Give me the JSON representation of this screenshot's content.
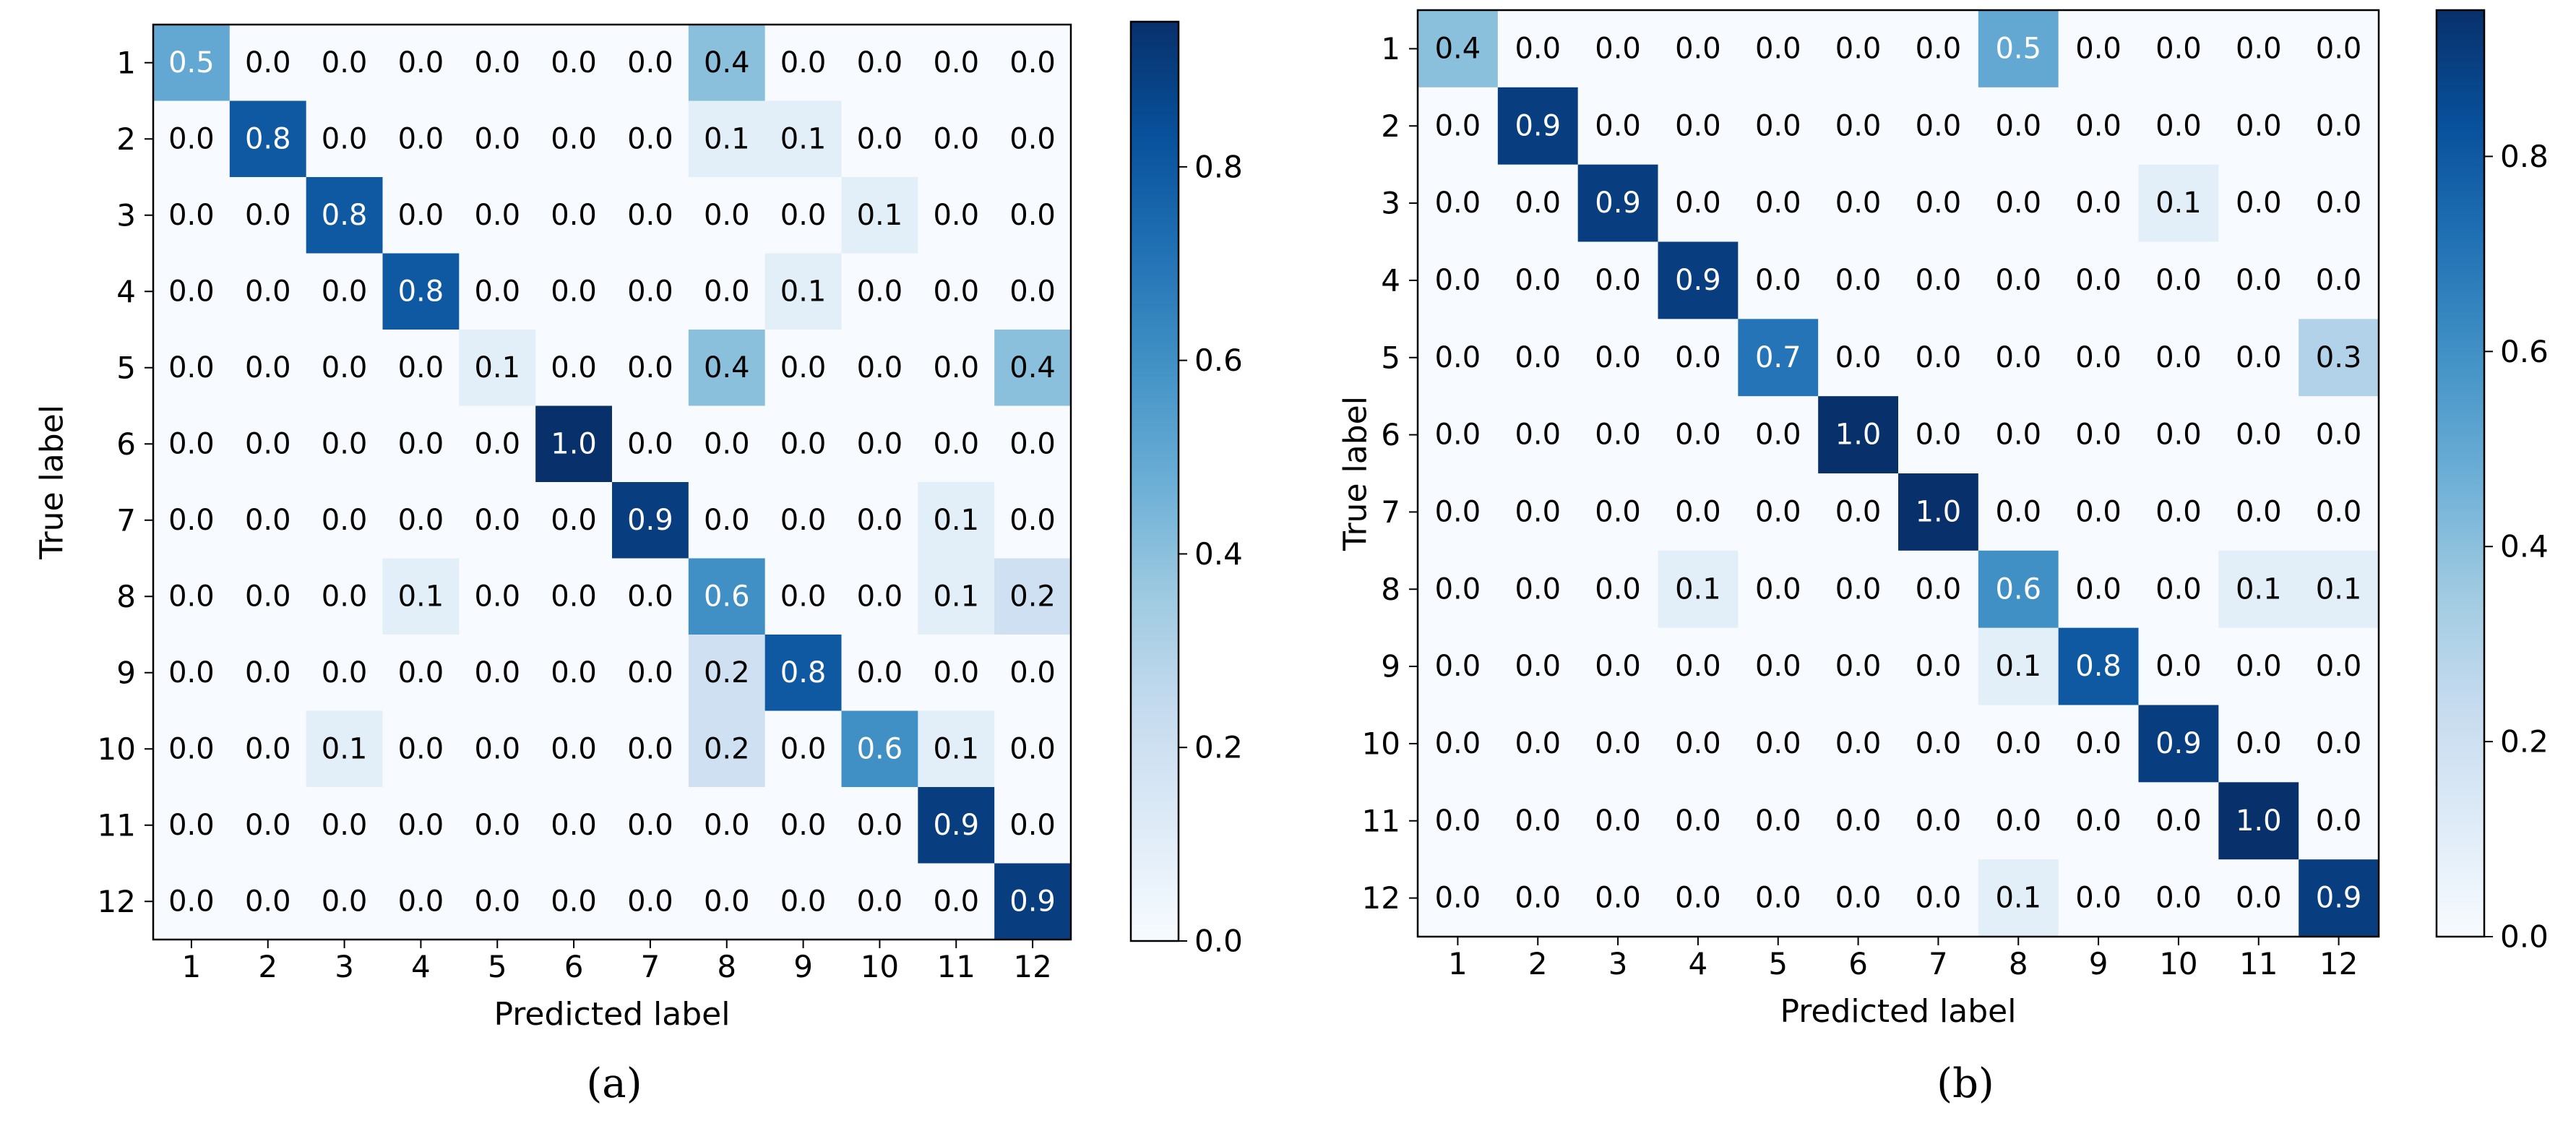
{
  "chart_data": [
    {
      "type": "heatmap",
      "panel_label": "(a)",
      "xlabel": "Predicted label",
      "ylabel": "True label",
      "x_categories": [
        "1",
        "2",
        "3",
        "4",
        "5",
        "6",
        "7",
        "8",
        "9",
        "10",
        "11",
        "12"
      ],
      "y_categories": [
        "1",
        "2",
        "3",
        "4",
        "5",
        "6",
        "7",
        "8",
        "9",
        "10",
        "11",
        "12"
      ],
      "values": [
        [
          0.5,
          0.0,
          0.0,
          0.0,
          0.0,
          0.0,
          0.0,
          0.4,
          0.0,
          0.0,
          0.0,
          0.0
        ],
        [
          0.0,
          0.8,
          0.0,
          0.0,
          0.0,
          0.0,
          0.0,
          0.1,
          0.1,
          0.0,
          0.0,
          0.0
        ],
        [
          0.0,
          0.0,
          0.8,
          0.0,
          0.0,
          0.0,
          0.0,
          0.0,
          0.0,
          0.1,
          0.0,
          0.0
        ],
        [
          0.0,
          0.0,
          0.0,
          0.8,
          0.0,
          0.0,
          0.0,
          0.0,
          0.1,
          0.0,
          0.0,
          0.0
        ],
        [
          0.0,
          0.0,
          0.0,
          0.0,
          0.1,
          0.0,
          0.0,
          0.4,
          0.0,
          0.0,
          0.0,
          0.4
        ],
        [
          0.0,
          0.0,
          0.0,
          0.0,
          0.0,
          1.0,
          0.0,
          0.0,
          0.0,
          0.0,
          0.0,
          0.0
        ],
        [
          0.0,
          0.0,
          0.0,
          0.0,
          0.0,
          0.0,
          0.9,
          0.0,
          0.0,
          0.0,
          0.1,
          0.0
        ],
        [
          0.0,
          0.0,
          0.0,
          0.1,
          0.0,
          0.0,
          0.0,
          0.6,
          0.0,
          0.0,
          0.1,
          0.2
        ],
        [
          0.0,
          0.0,
          0.0,
          0.0,
          0.0,
          0.0,
          0.0,
          0.2,
          0.8,
          0.0,
          0.0,
          0.0
        ],
        [
          0.0,
          0.0,
          0.1,
          0.0,
          0.0,
          0.0,
          0.0,
          0.2,
          0.0,
          0.6,
          0.1,
          0.0
        ],
        [
          0.0,
          0.0,
          0.0,
          0.0,
          0.0,
          0.0,
          0.0,
          0.0,
          0.0,
          0.0,
          0.9,
          0.0
        ],
        [
          0.0,
          0.0,
          0.0,
          0.0,
          0.0,
          0.0,
          0.0,
          0.0,
          0.0,
          0.0,
          0.0,
          0.9
        ]
      ],
      "colorbar": {
        "range": [
          0.0,
          0.95
        ],
        "ticks": [
          0.0,
          0.2,
          0.4,
          0.6,
          0.8
        ],
        "tick_labels": [
          "0.0",
          "0.2",
          "0.4",
          "0.6",
          "0.8"
        ]
      },
      "colormap": "Blues"
    },
    {
      "type": "heatmap",
      "panel_label": "(b)",
      "xlabel": "Predicted label",
      "ylabel": "True label",
      "x_categories": [
        "1",
        "2",
        "3",
        "4",
        "5",
        "6",
        "7",
        "8",
        "9",
        "10",
        "11",
        "12"
      ],
      "y_categories": [
        "1",
        "2",
        "3",
        "4",
        "5",
        "6",
        "7",
        "8",
        "9",
        "10",
        "11",
        "12"
      ],
      "values": [
        [
          0.4,
          0.0,
          0.0,
          0.0,
          0.0,
          0.0,
          0.0,
          0.5,
          0.0,
          0.0,
          0.0,
          0.0
        ],
        [
          0.0,
          0.9,
          0.0,
          0.0,
          0.0,
          0.0,
          0.0,
          0.0,
          0.0,
          0.0,
          0.0,
          0.0
        ],
        [
          0.0,
          0.0,
          0.9,
          0.0,
          0.0,
          0.0,
          0.0,
          0.0,
          0.0,
          0.1,
          0.0,
          0.0
        ],
        [
          0.0,
          0.0,
          0.0,
          0.9,
          0.0,
          0.0,
          0.0,
          0.0,
          0.0,
          0.0,
          0.0,
          0.0
        ],
        [
          0.0,
          0.0,
          0.0,
          0.0,
          0.7,
          0.0,
          0.0,
          0.0,
          0.0,
          0.0,
          0.0,
          0.3
        ],
        [
          0.0,
          0.0,
          0.0,
          0.0,
          0.0,
          1.0,
          0.0,
          0.0,
          0.0,
          0.0,
          0.0,
          0.0
        ],
        [
          0.0,
          0.0,
          0.0,
          0.0,
          0.0,
          0.0,
          1.0,
          0.0,
          0.0,
          0.0,
          0.0,
          0.0
        ],
        [
          0.0,
          0.0,
          0.0,
          0.1,
          0.0,
          0.0,
          0.0,
          0.6,
          0.0,
          0.0,
          0.1,
          0.1
        ],
        [
          0.0,
          0.0,
          0.0,
          0.0,
          0.0,
          0.0,
          0.0,
          0.1,
          0.8,
          0.0,
          0.0,
          0.0
        ],
        [
          0.0,
          0.0,
          0.0,
          0.0,
          0.0,
          0.0,
          0.0,
          0.0,
          0.0,
          0.9,
          0.0,
          0.0
        ],
        [
          0.0,
          0.0,
          0.0,
          0.0,
          0.0,
          0.0,
          0.0,
          0.0,
          0.0,
          0.0,
          1.0,
          0.0
        ],
        [
          0.0,
          0.0,
          0.0,
          0.0,
          0.0,
          0.0,
          0.0,
          0.1,
          0.0,
          0.0,
          0.0,
          0.9
        ]
      ],
      "colorbar": {
        "range": [
          0.0,
          0.95
        ],
        "ticks": [
          0.0,
          0.2,
          0.4,
          0.6,
          0.8
        ],
        "tick_labels": [
          "0.0",
          "0.2",
          "0.4",
          "0.6",
          "0.8"
        ]
      },
      "colormap": "Blues"
    }
  ],
  "colors": {
    "colormap_stops": [
      "#f7fbff",
      "#deebf7",
      "#c6dbef",
      "#9ecae1",
      "#6baed6",
      "#4292c6",
      "#2171b5",
      "#08519c",
      "#08306b"
    ],
    "axis": "#000000",
    "text_dark": "#000000",
    "text_light": "#ffffff"
  }
}
